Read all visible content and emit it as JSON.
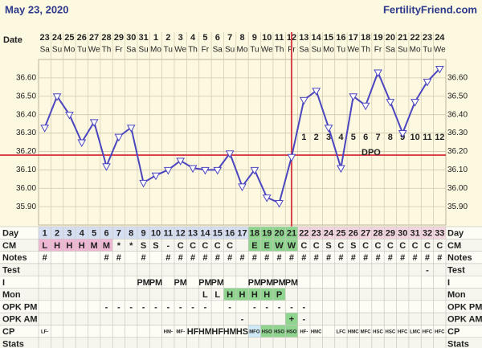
{
  "header": {
    "date": "May 23, 2020",
    "site": "FertilityFriend.com",
    "date_label": "Date"
  },
  "chart_data": {
    "type": "line",
    "categories": [
      23,
      24,
      25,
      26,
      27,
      28,
      29,
      30,
      31,
      1,
      2,
      3,
      4,
      5,
      6,
      7,
      8,
      9,
      10,
      11,
      12,
      13,
      14,
      15,
      16,
      17,
      18,
      19,
      20,
      21,
      22,
      23,
      24
    ],
    "weekdays": [
      "Sa",
      "Su",
      "Mo",
      "Tu",
      "We",
      "Th",
      "Fr",
      "Sa",
      "Su",
      "Mo",
      "Tu",
      "We",
      "Th",
      "Fr",
      "Sa",
      "Su",
      "Mo",
      "Tu",
      "We",
      "Th",
      "Fr",
      "Sa",
      "Su",
      "Mo",
      "Tu",
      "We",
      "Th",
      "Fr",
      "Sa",
      "Su",
      "Mo",
      "Tu",
      "We"
    ],
    "series": [
      {
        "color": "#4b45c0",
        "values": [
          36.33,
          36.5,
          36.4,
          36.25,
          36.36,
          36.12,
          36.28,
          36.33,
          36.03,
          36.07,
          36.1,
          36.15,
          36.11,
          36.1,
          36.1,
          36.19,
          36.01,
          36.1,
          35.95,
          35.92,
          36.17,
          36.48,
          36.53,
          36.33,
          36.11,
          36.5,
          36.45,
          36.63,
          36.47,
          36.3,
          36.47,
          36.58,
          36.65
        ]
      }
    ],
    "ylim": [
      35.8,
      36.7
    ],
    "yticks": [
      {
        "value": 35.9,
        "label": "35.90"
      },
      {
        "value": 36.0,
        "label": "36.00"
      },
      {
        "value": 36.1,
        "label": "36.10"
      },
      {
        "value": 36.2,
        "label": "36.20"
      },
      {
        "value": 36.3,
        "label": "36.30"
      },
      {
        "value": 36.4,
        "label": "36.40"
      },
      {
        "value": 36.5,
        "label": "36.50"
      },
      {
        "value": 36.6,
        "label": "36.60"
      }
    ],
    "grid": true,
    "coverline": 36.18,
    "line_color": "#d9434a",
    "ovulation_day": 21,
    "dpo": [
      1,
      2,
      3,
      4,
      5,
      6,
      7,
      8,
      9,
      10,
      11,
      12
    ],
    "dpo_label": "DPO"
  },
  "table": {
    "rows": [
      {
        "label": "Day",
        "cells": [
          1,
          2,
          3,
          4,
          5,
          6,
          7,
          8,
          9,
          10,
          11,
          12,
          13,
          14,
          15,
          16,
          17,
          18,
          19,
          20,
          21,
          22,
          23,
          24,
          25,
          26,
          27,
          28,
          29,
          30,
          31,
          32,
          33
        ],
        "cell_colors": [
          "#d6def2",
          "#d6def2",
          "#d6def2",
          "#d6def2",
          "#d6def2",
          "#d6def2",
          "#d6def2",
          "#d6def2",
          "#d6def2",
          "#d6def2",
          "#d6def2",
          "#d6def2",
          "#d6def2",
          "#d6def2",
          "#d6def2",
          "#d6def2",
          "#d6def2",
          "#8fd48f",
          "#8fd48f",
          "#8fd48f",
          "#8fd48f",
          "#f3d6e0",
          "#f3d6e0",
          "#f3d6e0",
          "#f3d6e0",
          "#f3d6e0",
          "#f3d6e0",
          "#f3d6e0",
          "#f3d6e0",
          "#f3d6e0",
          "#f3d6e0",
          "#f3d6e0",
          "#f3d6e0"
        ]
      },
      {
        "label": "CM",
        "cells": [
          "L",
          "H",
          "H",
          "H",
          "M",
          "M",
          "*",
          "*",
          "S",
          "S",
          "-",
          "C",
          "C",
          "C",
          "C",
          "C",
          null,
          "E",
          "E",
          "W",
          "W",
          "C",
          "C",
          "S",
          "C",
          "S",
          "C",
          "C",
          "C",
          "C",
          "C",
          "C",
          "C"
        ],
        "cell_colors": [
          "#eeb8d4",
          "#eeb8d4",
          "#eeb8d4",
          "#eeb8d4",
          "#eeb8d4",
          "#eeb8d4",
          null,
          null,
          null,
          null,
          null,
          null,
          null,
          null,
          null,
          null,
          null,
          "#8fd48f",
          "#8fd48f",
          "#8fd48f",
          "#8fd48f",
          null,
          null,
          null,
          null,
          null,
          null,
          null,
          null,
          null,
          null,
          null,
          null
        ]
      },
      {
        "label": "Notes",
        "cells": [
          "#",
          null,
          null,
          null,
          null,
          "#",
          "#",
          null,
          "#",
          null,
          "#",
          "#",
          "#",
          "#",
          "#",
          "#",
          "#",
          "#",
          "#",
          "#",
          "#",
          "#",
          "#",
          "#",
          "#",
          "#",
          "#",
          "#",
          "#",
          "#",
          "#",
          "#",
          "#"
        ]
      },
      {
        "label": "Test",
        "cells": [
          null,
          null,
          null,
          null,
          null,
          null,
          null,
          null,
          null,
          null,
          null,
          null,
          null,
          null,
          null,
          null,
          null,
          null,
          null,
          null,
          null,
          null,
          null,
          null,
          null,
          null,
          null,
          null,
          null,
          null,
          null,
          "-",
          null
        ]
      },
      {
        "label": "I",
        "cells": [
          null,
          null,
          null,
          null,
          null,
          null,
          null,
          null,
          "PM",
          "PM",
          null,
          "PM",
          null,
          "PM",
          "PM",
          null,
          null,
          "PM",
          "PM",
          "PM",
          "PM",
          null,
          null,
          null,
          null,
          null,
          null,
          null,
          null,
          null,
          null,
          null,
          null
        ]
      },
      {
        "label": "Mon",
        "cells": [
          null,
          null,
          null,
          null,
          null,
          null,
          null,
          null,
          null,
          null,
          null,
          null,
          null,
          "L",
          "L",
          "H",
          "H",
          "H",
          "H",
          "P",
          null,
          null,
          null,
          null,
          null,
          null,
          null,
          null,
          null,
          null,
          null,
          null,
          null
        ],
        "cell_colors": [
          null,
          null,
          null,
          null,
          null,
          null,
          null,
          null,
          null,
          null,
          null,
          null,
          null,
          null,
          null,
          "#8fd48f",
          "#8fd48f",
          "#8fd48f",
          "#8fd48f",
          "#8fd48f",
          null,
          null,
          null,
          null,
          null,
          null,
          null,
          null,
          null,
          null,
          null,
          null,
          null
        ]
      },
      {
        "label": "OPK PM",
        "cells": [
          null,
          null,
          null,
          null,
          null,
          "-",
          "-",
          "-",
          "-",
          "-",
          "-",
          "-",
          "-",
          "-",
          null,
          "-",
          null,
          "-",
          "-",
          "-",
          "-",
          "-",
          null,
          null,
          null,
          null,
          null,
          null,
          null,
          null,
          null,
          null,
          null
        ]
      },
      {
        "label": "OPK AM",
        "cells": [
          null,
          null,
          null,
          null,
          null,
          null,
          null,
          null,
          null,
          null,
          null,
          null,
          null,
          null,
          null,
          null,
          "-",
          null,
          null,
          null,
          "+",
          "-",
          null,
          null,
          null,
          null,
          null,
          null,
          null,
          null,
          null,
          null,
          null
        ],
        "cell_colors": [
          null,
          null,
          null,
          null,
          null,
          null,
          null,
          null,
          null,
          null,
          null,
          null,
          null,
          null,
          null,
          null,
          null,
          null,
          null,
          null,
          "#8fd48f",
          null,
          null,
          null,
          null,
          null,
          null,
          null,
          null,
          null,
          null,
          null,
          null
        ]
      },
      {
        "label": "CP",
        "cells": [
          "LF-",
          null,
          null,
          null,
          null,
          null,
          null,
          null,
          null,
          null,
          "HM-",
          "MF-",
          "HF",
          "HM",
          "HF",
          "HM",
          "HS",
          "MFO",
          "HSO",
          "HSO",
          "HSO",
          "HF-",
          "HMC",
          null,
          "LFC",
          "HMC",
          "MFC",
          "HSC",
          "HSC",
          "HFC",
          "LMC",
          "HFC",
          "HFC"
        ],
        "cell_colors": [
          null,
          null,
          null,
          null,
          null,
          null,
          null,
          null,
          null,
          null,
          null,
          null,
          null,
          null,
          null,
          null,
          null,
          "#cfe8f6",
          "#8fd48f",
          "#8fd48f",
          "#8fd48f",
          null,
          null,
          null,
          null,
          null,
          null,
          null,
          null,
          null,
          null,
          null,
          null
        ]
      },
      {
        "label": "Stats",
        "cells": [
          null,
          null,
          null,
          null,
          null,
          null,
          null,
          null,
          null,
          null,
          null,
          null,
          null,
          null,
          null,
          null,
          null,
          null,
          null,
          null,
          null,
          null,
          null,
          null,
          null,
          null,
          null,
          null,
          null,
          null,
          null,
          null,
          null
        ]
      }
    ]
  }
}
